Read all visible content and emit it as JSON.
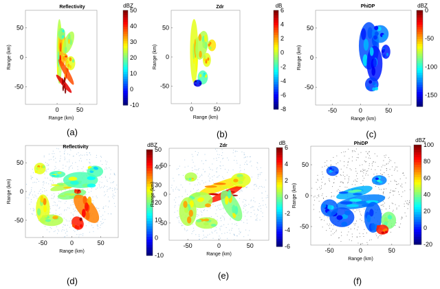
{
  "chart_data": [
    {
      "id": "a",
      "caption": "(a)",
      "type": "heatmap",
      "title": "Reflectivity",
      "xlabel": "Range (km)",
      "ylabel": "Range (km)",
      "xticks": [
        "0",
        "50"
      ],
      "yticks": [
        "50",
        "0",
        "-50"
      ],
      "colorbar": {
        "unit": "dBZ",
        "ticks": [
          "50",
          "40",
          "30",
          "20",
          "10",
          "0",
          "-10"
        ],
        "range": [
          -10,
          50
        ]
      },
      "colormap": "jet"
    },
    {
      "id": "b",
      "caption": "(b)",
      "type": "heatmap",
      "title": "Zdr",
      "xlabel": "Range (km)",
      "ylabel": "Range (km)",
      "xticks": [
        "0",
        "50"
      ],
      "yticks": [
        "50",
        "0",
        "-50"
      ],
      "colorbar": {
        "unit": "dB",
        "ticks": [
          "6",
          "4",
          "2",
          "0",
          "-2",
          "-4",
          "-6",
          "-8"
        ],
        "range": [
          -8,
          6
        ]
      },
      "colormap": "jet"
    },
    {
      "id": "c",
      "caption": "(c)",
      "type": "heatmap",
      "title": "PhiDP",
      "xlabel": "Range (km)",
      "ylabel": "Range (km)",
      "xticks": [
        "-50",
        "0",
        "50"
      ],
      "yticks": [
        "50",
        "0",
        "-50"
      ],
      "colorbar": {
        "unit": "dBZ",
        "ticks": [
          "0",
          "-50",
          "-100",
          "-150"
        ],
        "range": [
          -170,
          0
        ]
      },
      "colormap": "jet"
    },
    {
      "id": "d",
      "caption": "(d)",
      "type": "heatmap",
      "title": "Reflectivity",
      "xlabel": "Range (km)",
      "ylabel": "Range (km)",
      "xticks": [
        "-50",
        "0",
        "50"
      ],
      "yticks": [
        "50",
        "0",
        "-50"
      ],
      "colorbar": {
        "unit": "dBZ",
        "ticks": [
          "50",
          "40",
          "30",
          "20",
          "10",
          "0",
          "-10"
        ],
        "range": [
          -10,
          50
        ]
      },
      "colormap": "jet"
    },
    {
      "id": "e",
      "caption": "(e)",
      "type": "heatmap",
      "title": "Zdr",
      "xlabel": "Range (km)",
      "ylabel": "Range (km)",
      "xticks": [
        "-50",
        "0",
        "50"
      ],
      "yticks": [
        "50",
        "0",
        "-50"
      ],
      "colorbar": {
        "unit": "dB",
        "ticks": [
          "6",
          "4",
          "2",
          "0",
          "-2",
          "-4",
          "-6"
        ],
        "range": [
          -6,
          6
        ]
      },
      "colormap": "jet"
    },
    {
      "id": "f",
      "caption": "(f)",
      "type": "heatmap",
      "title": "PhiDP",
      "xlabel": "Range (km)",
      "ylabel": "Range (km)",
      "xticks": [
        "-50",
        "0",
        "50"
      ],
      "yticks": [
        "50",
        "0",
        "-50"
      ],
      "colorbar": {
        "unit": "dBZ",
        "ticks": [
          "100",
          "80",
          "60",
          "40",
          "20",
          "0",
          "-20"
        ],
        "range": [
          -20,
          100
        ]
      },
      "colormap": "jet"
    }
  ]
}
